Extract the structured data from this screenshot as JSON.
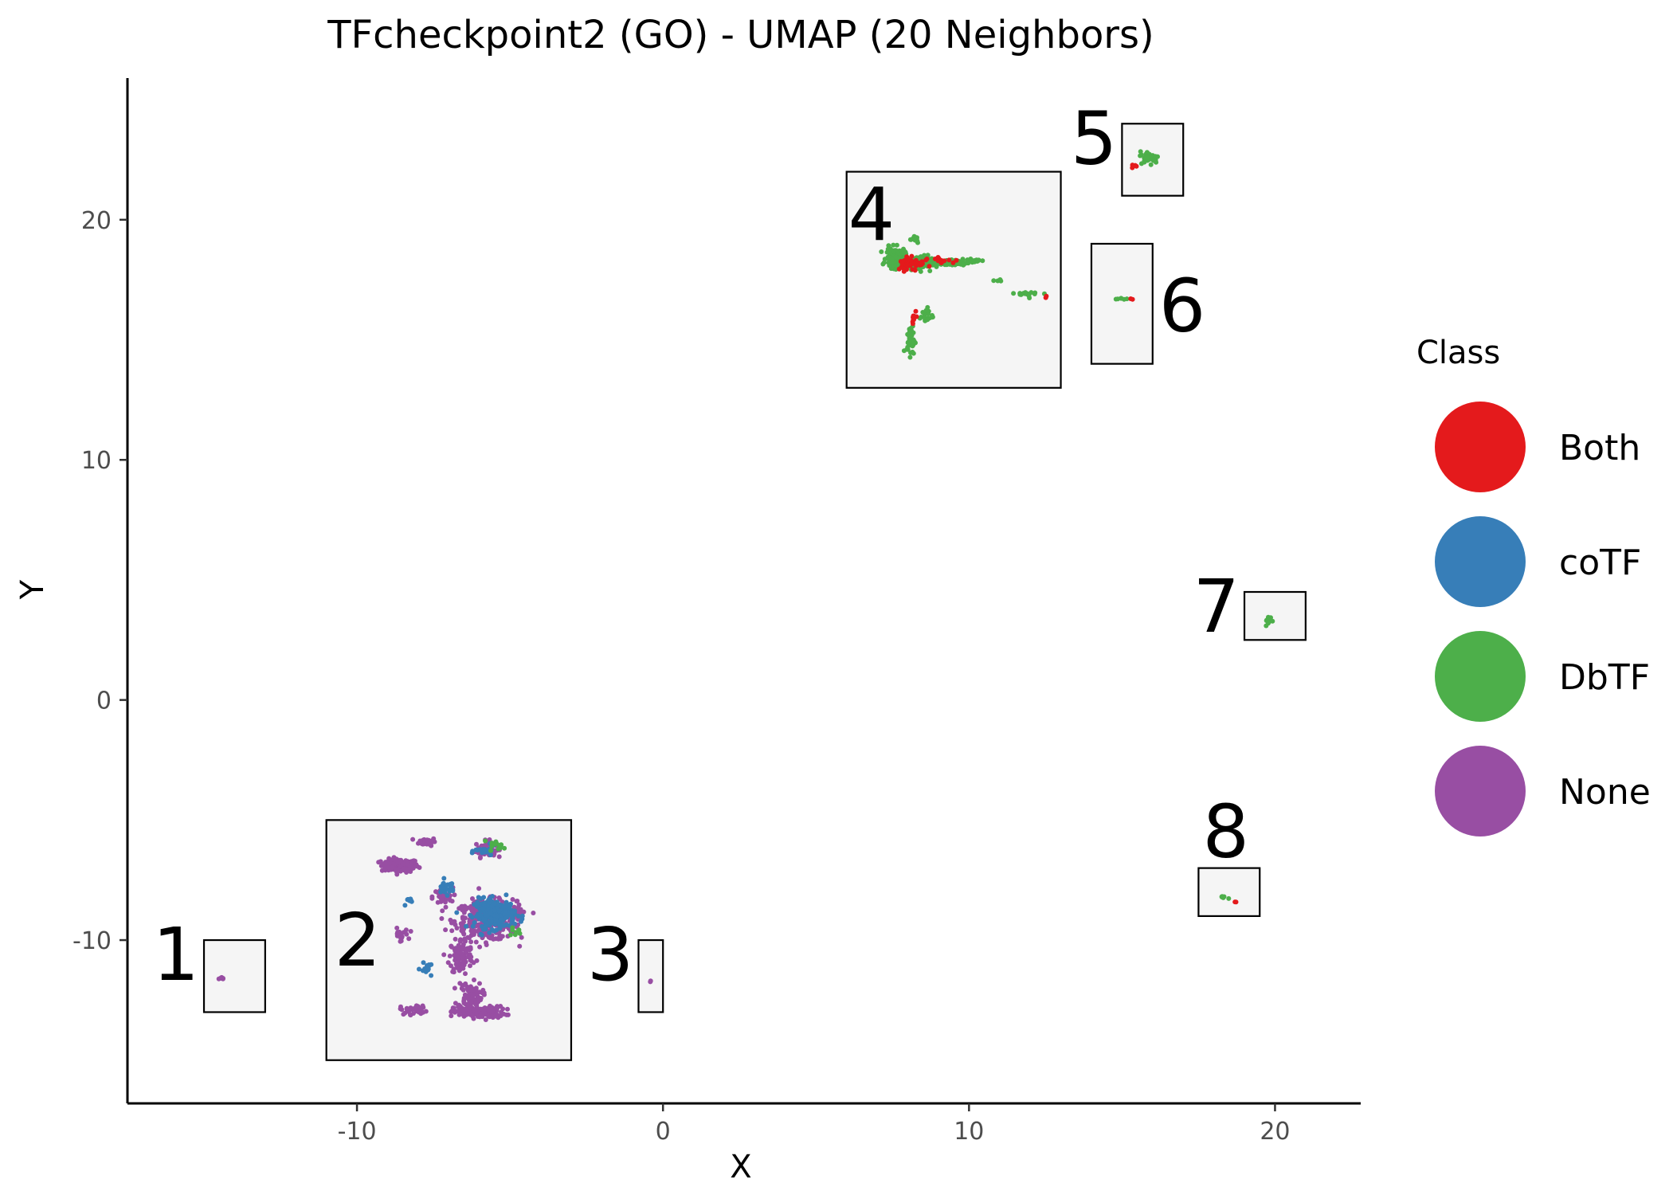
{
  "chart_data": {
    "type": "scatter",
    "title": "TFcheckpoint2 (GO) - UMAP (20 Neighbors)",
    "xlabel": "X",
    "ylabel": "Y",
    "xlim": [
      -17.5,
      22.8
    ],
    "ylim": [
      -16.8,
      25.9
    ],
    "x_ticks": [
      -10,
      0,
      10,
      20
    ],
    "y_ticks": [
      -10,
      0,
      10,
      20
    ],
    "x_tick_labels": [
      "-10",
      "0",
      "10",
      "20"
    ],
    "y_tick_labels": [
      "-10",
      "0",
      "10",
      "20"
    ],
    "grid": false,
    "legend": {
      "title": "Class",
      "placement": "right",
      "entries": [
        {
          "label": "Both",
          "color": "#e41a1c"
        },
        {
          "label": "coTF",
          "color": "#377eb8"
        },
        {
          "label": "DbTF",
          "color": "#4daf4a"
        },
        {
          "label": "None",
          "color": "#984ea3"
        }
      ]
    },
    "clusters": [
      {
        "label": "1",
        "box": [
          -15,
          -13,
          -13,
          -10
        ],
        "label_side": "left"
      },
      {
        "label": "2",
        "box": [
          -11,
          -3,
          -15,
          -5
        ],
        "label_side": "inside-left"
      },
      {
        "label": "3",
        "box": [
          -0.8,
          0,
          -13,
          -10
        ],
        "label_side": "left"
      },
      {
        "label": "4",
        "box": [
          6,
          13,
          13,
          22
        ],
        "label_side": "inside-top-left"
      },
      {
        "label": "5",
        "box": [
          15,
          17,
          21,
          24
        ],
        "label_side": "left"
      },
      {
        "label": "6",
        "box": [
          14,
          16,
          14,
          19
        ],
        "label_side": "right"
      },
      {
        "label": "7",
        "box": [
          19,
          21,
          2.5,
          4.5
        ],
        "label_side": "left"
      },
      {
        "label": "8",
        "box": [
          17.5,
          19.5,
          -9,
          -7
        ],
        "label_side": "above"
      }
    ],
    "series": [
      {
        "name": "None",
        "color": "#984ea3",
        "groups": [
          {
            "center": [
              -14.4,
              -11.6
            ],
            "spread": [
              0.1,
              0.06
            ],
            "n": 8
          },
          {
            "center": [
              -0.4,
              -11.7
            ],
            "spread": [
              0.03,
              0.05
            ],
            "n": 2
          },
          {
            "center": [
              -8.6,
              -6.9
            ],
            "spread": [
              0.55,
              0.25
            ],
            "n": 130
          },
          {
            "center": [
              -7.7,
              -5.9
            ],
            "spread": [
              0.25,
              0.15
            ],
            "n": 40
          },
          {
            "center": [
              -5.8,
              -6.2
            ],
            "spread": [
              0.3,
              0.3
            ],
            "n": 60
          },
          {
            "center": [
              -5.8,
              -9.2
            ],
            "spread": [
              0.9,
              0.75
            ],
            "n": 320
          },
          {
            "center": [
              -7.2,
              -8.2
            ],
            "spread": [
              0.3,
              0.35
            ],
            "n": 40
          },
          {
            "center": [
              -6.6,
              -10.7
            ],
            "spread": [
              0.35,
              0.7
            ],
            "n": 100
          },
          {
            "center": [
              -6.3,
              -12.3
            ],
            "spread": [
              0.35,
              0.5
            ],
            "n": 80
          },
          {
            "center": [
              -6.0,
              -13.0
            ],
            "spread": [
              0.75,
              0.22
            ],
            "n": 150
          },
          {
            "center": [
              -8.1,
              -12.9
            ],
            "spread": [
              0.45,
              0.18
            ],
            "n": 30
          },
          {
            "center": [
              -8.6,
              -9.8
            ],
            "spread": [
              0.25,
              0.25
            ],
            "n": 20
          },
          {
            "center": [
              -4.8,
              -8.8
            ],
            "spread": [
              0.3,
              0.5
            ],
            "n": 30
          }
        ]
      },
      {
        "name": "coTF",
        "color": "#377eb8",
        "groups": [
          {
            "center": [
              -5.5,
              -8.9
            ],
            "spread": [
              0.6,
              0.55
            ],
            "n": 220
          },
          {
            "center": [
              -7.1,
              -7.8
            ],
            "spread": [
              0.25,
              0.25
            ],
            "n": 30
          },
          {
            "center": [
              -7.7,
              -11.2
            ],
            "spread": [
              0.2,
              0.2
            ],
            "n": 15
          },
          {
            "center": [
              -5.8,
              -6.3
            ],
            "spread": [
              0.3,
              0.2
            ],
            "n": 20
          },
          {
            "center": [
              -8.3,
              -8.4
            ],
            "spread": [
              0.2,
              0.2
            ],
            "n": 8
          }
        ]
      },
      {
        "name": "DbTF",
        "color": "#4daf4a",
        "groups": [
          {
            "center": [
              7.6,
              18.4
            ],
            "spread": [
              0.28,
              0.38
            ],
            "n": 160
          },
          {
            "center": [
              8.4,
              18.2
            ],
            "spread": [
              0.35,
              0.28
            ],
            "n": 90
          },
          {
            "center": [
              9.4,
              18.2
            ],
            "spread": [
              0.5,
              0.12
            ],
            "n": 50
          },
          {
            "center": [
              10.2,
              18.3
            ],
            "spread": [
              0.3,
              0.06
            ],
            "n": 20
          },
          {
            "center": [
              8.1,
              15.0
            ],
            "spread": [
              0.12,
              0.55
            ],
            "n": 40
          },
          {
            "center": [
              8.6,
              16.0
            ],
            "spread": [
              0.2,
              0.3
            ],
            "n": 20
          },
          {
            "center": [
              12.1,
              16.9
            ],
            "spread": [
              0.45,
              0.12
            ],
            "n": 15
          },
          {
            "center": [
              10.9,
              17.5
            ],
            "spread": [
              0.2,
              0.1
            ],
            "n": 4
          },
          {
            "center": [
              8.2,
              19.2
            ],
            "spread": [
              0.2,
              0.15
            ],
            "n": 15
          },
          {
            "center": [
              15.9,
              22.6
            ],
            "spread": [
              0.28,
              0.22
            ],
            "n": 45
          },
          {
            "center": [
              15.0,
              16.7
            ],
            "spread": [
              0.2,
              0.04
            ],
            "n": 6
          },
          {
            "center": [
              19.8,
              3.3
            ],
            "spread": [
              0.1,
              0.18
            ],
            "n": 14
          },
          {
            "center": [
              18.3,
              -8.2
            ],
            "spread": [
              0.12,
              0.06
            ],
            "n": 8
          },
          {
            "center": [
              -5.4,
              -6.1
            ],
            "spread": [
              0.22,
              0.2
            ],
            "n": 15
          },
          {
            "center": [
              -4.8,
              -9.6
            ],
            "spread": [
              0.25,
              0.2
            ],
            "n": 8
          }
        ]
      },
      {
        "name": "Both",
        "color": "#e41a1c",
        "groups": [
          {
            "center": [
              8.1,
              18.2
            ],
            "spread": [
              0.4,
              0.3
            ],
            "n": 55
          },
          {
            "center": [
              9.1,
              18.3
            ],
            "spread": [
              0.4,
              0.1
            ],
            "n": 15
          },
          {
            "center": [
              8.2,
              16.0
            ],
            "spread": [
              0.1,
              0.22
            ],
            "n": 10
          },
          {
            "center": [
              15.4,
              22.2
            ],
            "spread": [
              0.1,
              0.08
            ],
            "n": 5
          },
          {
            "center": [
              15.3,
              16.7
            ],
            "spread": [
              0.05,
              0.03
            ],
            "n": 2
          },
          {
            "center": [
              18.7,
              -8.4
            ],
            "spread": [
              0.04,
              0.04
            ],
            "n": 2
          },
          {
            "center": [
              12.5,
              16.8
            ],
            "spread": [
              0.1,
              0.05
            ],
            "n": 2
          }
        ]
      }
    ]
  }
}
